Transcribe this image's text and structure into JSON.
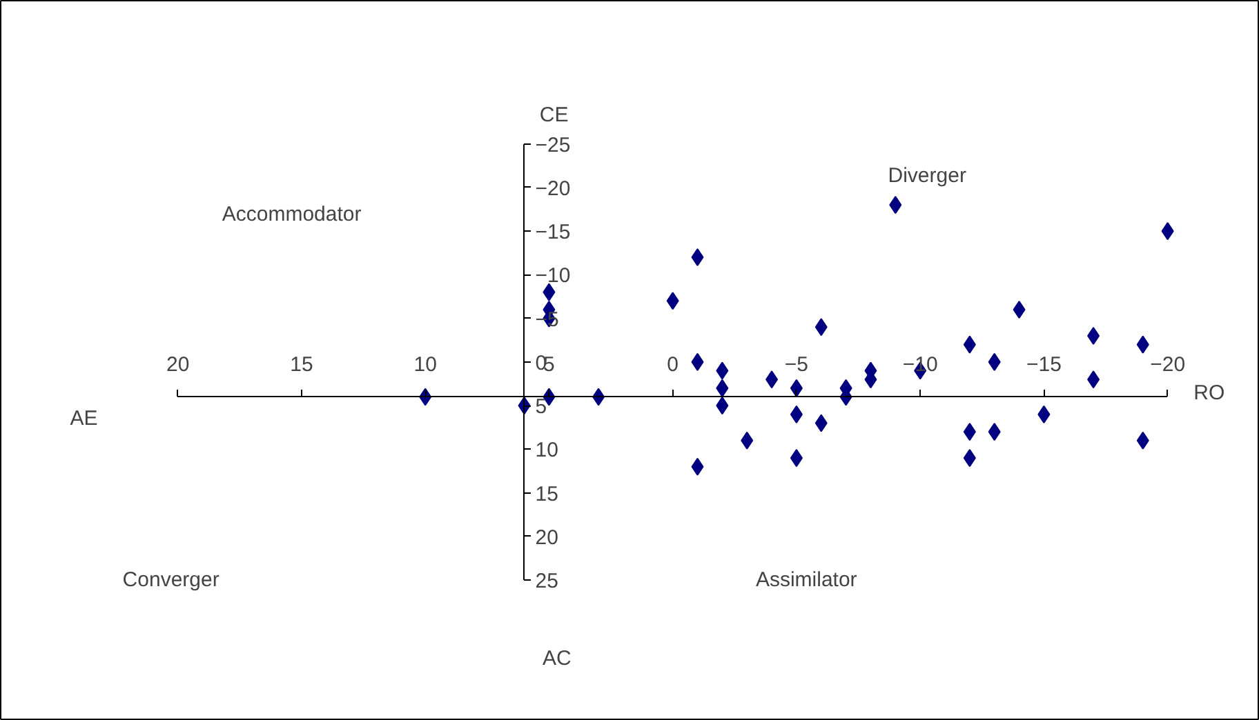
{
  "chart_data": {
    "type": "scatter",
    "marker": "diamond",
    "grid": false,
    "x": [
      10,
      6,
      5,
      5,
      5,
      5,
      3,
      0,
      -1,
      -1,
      -1,
      -2,
      -2,
      -2,
      -3,
      -4,
      -5,
      -5,
      -5,
      -6,
      -6,
      -7,
      -7,
      -8,
      -8,
      -9,
      -10,
      -12,
      -12,
      -12,
      -13,
      -13,
      -14,
      -15,
      -17,
      -17,
      -19,
      -19,
      -20
    ],
    "series": [
      {
        "color": "#000080",
        "values": [
          4,
          5,
          4,
          -8,
          -6,
          -5,
          4,
          -7,
          -12,
          0,
          12,
          1,
          3,
          5,
          9,
          2,
          3,
          6,
          11,
          -4,
          7,
          3,
          4,
          1,
          2,
          -18,
          1,
          -2,
          8,
          11,
          0,
          8,
          -6,
          6,
          -3,
          2,
          -2,
          9,
          -15
        ]
      }
    ],
    "xlim": [
      20,
      -20
    ],
    "ylim": [
      25,
      -25
    ],
    "xticks": [
      20,
      15,
      10,
      5,
      0,
      -5,
      -10,
      -15,
      -20
    ],
    "yticks": [
      -25,
      -20,
      -15,
      -10,
      -5,
      0,
      5,
      10,
      15,
      20,
      25
    ],
    "annotations": [
      "Accommodator",
      "Diverger",
      "Converger",
      "Assimilator",
      "CE",
      "AC",
      "AE",
      "RO"
    ]
  }
}
